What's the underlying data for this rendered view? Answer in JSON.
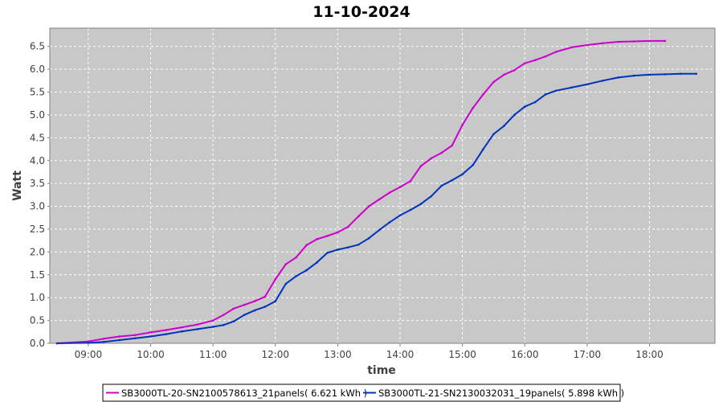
{
  "chart_data": {
    "type": "line",
    "title": "11-10-2024",
    "xlabel": "time",
    "ylabel": "Watt",
    "xlim": [
      "08:23",
      "19:03"
    ],
    "ylim": [
      0,
      6.9
    ],
    "x_tick_labels": [
      "09:00",
      "10:00",
      "11:00",
      "12:00",
      "13:00",
      "14:00",
      "15:00",
      "16:00",
      "17:00",
      "18:00"
    ],
    "y_tick_labels": [
      "0.0",
      "0.5",
      "1.0",
      "1.5",
      "2.0",
      "2.5",
      "3.0",
      "3.5",
      "4.0",
      "4.5",
      "5.0",
      "5.5",
      "6.0",
      "6.5"
    ],
    "grid": true,
    "legend_position": "bottom",
    "plot_background": "#c8c8c8",
    "series": [
      {
        "name": "SB3000TL-20-SN2100578613_21panels( 6.621 kWh )",
        "color": "#cc00cc",
        "points": [
          [
            "08:30",
            0.0
          ],
          [
            "09:00",
            0.04
          ],
          [
            "09:15",
            0.1
          ],
          [
            "09:30",
            0.15
          ],
          [
            "09:45",
            0.18
          ],
          [
            "10:00",
            0.24
          ],
          [
            "10:15",
            0.29
          ],
          [
            "10:30",
            0.35
          ],
          [
            "10:45",
            0.41
          ],
          [
            "11:00",
            0.5
          ],
          [
            "11:10",
            0.62
          ],
          [
            "11:20",
            0.76
          ],
          [
            "11:30",
            0.84
          ],
          [
            "11:40",
            0.92
          ],
          [
            "11:50",
            1.02
          ],
          [
            "12:00",
            1.4
          ],
          [
            "12:10",
            1.73
          ],
          [
            "12:20",
            1.88
          ],
          [
            "12:30",
            2.15
          ],
          [
            "12:40",
            2.28
          ],
          [
            "12:50",
            2.35
          ],
          [
            "13:00",
            2.43
          ],
          [
            "13:10",
            2.55
          ],
          [
            "13:20",
            2.78
          ],
          [
            "13:30",
            3.0
          ],
          [
            "13:40",
            3.15
          ],
          [
            "13:50",
            3.3
          ],
          [
            "14:00",
            3.42
          ],
          [
            "14:10",
            3.55
          ],
          [
            "14:20",
            3.88
          ],
          [
            "14:30",
            4.05
          ],
          [
            "14:40",
            4.17
          ],
          [
            "14:50",
            4.33
          ],
          [
            "15:00",
            4.78
          ],
          [
            "15:10",
            5.15
          ],
          [
            "15:20",
            5.45
          ],
          [
            "15:30",
            5.72
          ],
          [
            "15:40",
            5.88
          ],
          [
            "15:50",
            5.98
          ],
          [
            "16:00",
            6.13
          ],
          [
            "16:10",
            6.2
          ],
          [
            "16:20",
            6.28
          ],
          [
            "16:30",
            6.38
          ],
          [
            "16:45",
            6.48
          ],
          [
            "17:00",
            6.53
          ],
          [
            "17:15",
            6.57
          ],
          [
            "17:30",
            6.6
          ],
          [
            "17:45",
            6.61
          ],
          [
            "18:00",
            6.62
          ],
          [
            "18:15",
            6.62
          ]
        ]
      },
      {
        "name": "SB3000TL-21-SN2130032031_19panels( 5.898 kWh )",
        "color": "#0033bb",
        "points": [
          [
            "08:30",
            0.0
          ],
          [
            "09:00",
            0.01
          ],
          [
            "09:15",
            0.03
          ],
          [
            "09:30",
            0.07
          ],
          [
            "09:45",
            0.11
          ],
          [
            "10:00",
            0.15
          ],
          [
            "10:15",
            0.2
          ],
          [
            "10:30",
            0.26
          ],
          [
            "10:45",
            0.31
          ],
          [
            "11:00",
            0.36
          ],
          [
            "11:10",
            0.4
          ],
          [
            "11:20",
            0.48
          ],
          [
            "11:30",
            0.62
          ],
          [
            "11:40",
            0.72
          ],
          [
            "11:50",
            0.8
          ],
          [
            "12:00",
            0.92
          ],
          [
            "12:10",
            1.3
          ],
          [
            "12:20",
            1.47
          ],
          [
            "12:30",
            1.6
          ],
          [
            "12:40",
            1.77
          ],
          [
            "12:50",
            1.98
          ],
          [
            "13:00",
            2.05
          ],
          [
            "13:10",
            2.1
          ],
          [
            "13:20",
            2.16
          ],
          [
            "13:30",
            2.3
          ],
          [
            "13:40",
            2.48
          ],
          [
            "13:50",
            2.65
          ],
          [
            "14:00",
            2.8
          ],
          [
            "14:10",
            2.92
          ],
          [
            "14:20",
            3.05
          ],
          [
            "14:30",
            3.22
          ],
          [
            "14:40",
            3.45
          ],
          [
            "14:50",
            3.57
          ],
          [
            "15:00",
            3.7
          ],
          [
            "15:10",
            3.9
          ],
          [
            "15:20",
            4.25
          ],
          [
            "15:30",
            4.58
          ],
          [
            "15:40",
            4.76
          ],
          [
            "15:50",
            5.0
          ],
          [
            "16:00",
            5.18
          ],
          [
            "16:10",
            5.28
          ],
          [
            "16:20",
            5.45
          ],
          [
            "16:30",
            5.53
          ],
          [
            "16:45",
            5.6
          ],
          [
            "17:00",
            5.67
          ],
          [
            "17:15",
            5.75
          ],
          [
            "17:30",
            5.82
          ],
          [
            "17:45",
            5.86
          ],
          [
            "18:00",
            5.88
          ],
          [
            "18:15",
            5.89
          ],
          [
            "18:30",
            5.9
          ],
          [
            "18:45",
            5.9
          ]
        ]
      }
    ]
  }
}
